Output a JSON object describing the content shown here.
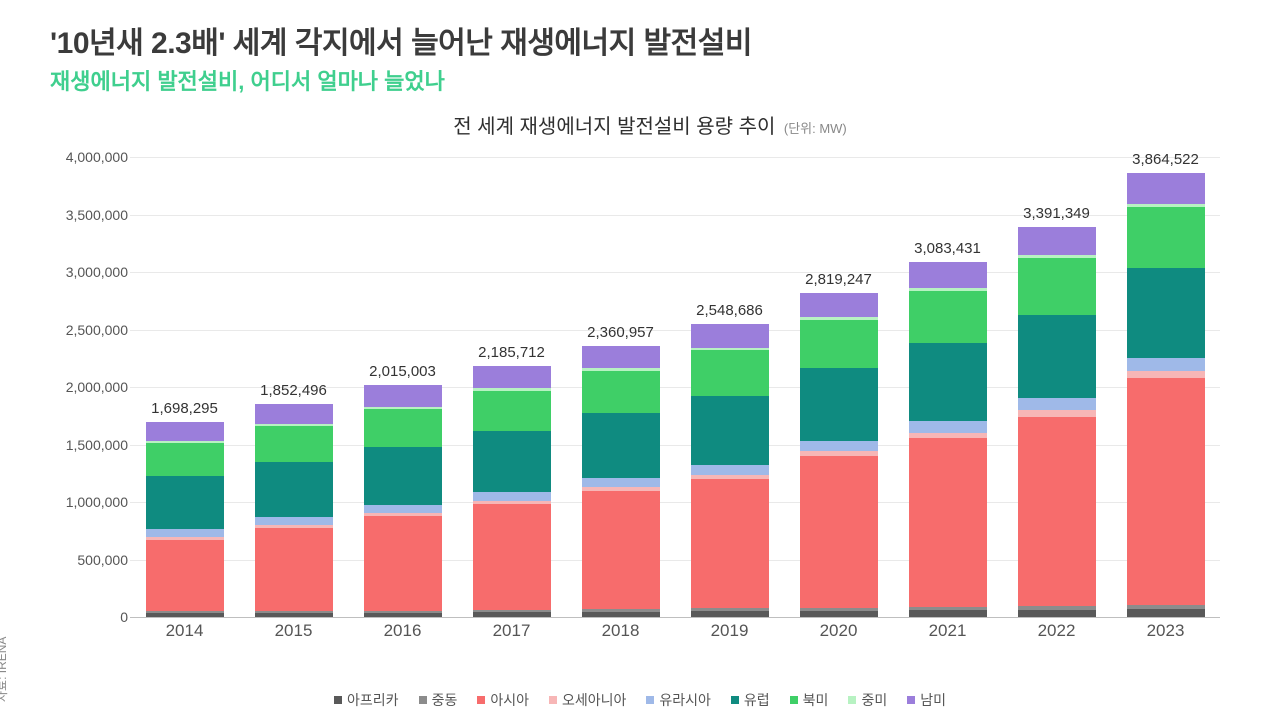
{
  "title_main": "'10년새 2.3배' 세계 각지에서 늘어난 재생에너지 발전설비",
  "title_sub": "재생에너지 발전설비, 어디서 얼마나 늘었나",
  "title_sub_color": "#3fcf8e",
  "chart_title": "전 세계 재생에너지 발전설비 용량 추이",
  "chart_unit": "(단위: MW)",
  "source": "자료: IRENA",
  "chart": {
    "type": "stacked-bar",
    "background_color": "#ffffff",
    "grid_color": "#e9e9e9",
    "axis_color": "#bfbfbf",
    "text_color": "#555555",
    "ylim": [
      0,
      4000000
    ],
    "ytick_step": 500000,
    "yticks": [
      "0",
      "500,000",
      "1,000,000",
      "1,500,000",
      "2,000,000",
      "2,500,000",
      "3,000,000",
      "3,500,000",
      "4,000,000"
    ],
    "years": [
      "2014",
      "2015",
      "2016",
      "2017",
      "2018",
      "2019",
      "2020",
      "2021",
      "2022",
      "2023"
    ],
    "series": [
      {
        "key": "africa",
        "label": "아프리카",
        "color": "#595959"
      },
      {
        "key": "mideast",
        "label": "중동",
        "color": "#8c8c8c"
      },
      {
        "key": "asia",
        "label": "아시아",
        "color": "#f76c6c"
      },
      {
        "key": "oceania",
        "label": "오세아니아",
        "color": "#f7b6b6"
      },
      {
        "key": "eurasia",
        "label": "유라시아",
        "color": "#9fb9e8"
      },
      {
        "key": "europe",
        "label": "유럽",
        "color": "#0f8b80"
      },
      {
        "key": "namerica",
        "label": "북미",
        "color": "#3fcf67"
      },
      {
        "key": "camerica",
        "label": "중미",
        "color": "#b7f2c2"
      },
      {
        "key": "samerica",
        "label": "남미",
        "color": "#9b7edb"
      }
    ],
    "totals": [
      "1,698,295",
      "1,852,496",
      "2,015,003",
      "2,185,712",
      "2,360,957",
      "2,548,686",
      "2,819,247",
      "3,083,431",
      "3,391,349",
      "3,864,522"
    ],
    "data": {
      "africa": [
        33000,
        35000,
        38000,
        42000,
        46000,
        50000,
        55000,
        58000,
        62000,
        66000
      ],
      "mideast": [
        16000,
        17000,
        18000,
        20000,
        22000,
        24000,
        26000,
        28000,
        30000,
        34000
      ],
      "asia": [
        620000,
        720000,
        820000,
        920000,
        1030000,
        1130000,
        1320000,
        1470000,
        1650000,
        1980000
      ],
      "oceania": [
        24000,
        25000,
        26000,
        28000,
        30000,
        34000,
        40000,
        46000,
        54000,
        60000
      ],
      "eurasia": [
        70000,
        72000,
        74000,
        78000,
        82000,
        86000,
        92000,
        98000,
        104000,
        112000
      ],
      "europe": [
        460000,
        480000,
        500000,
        530000,
        560000,
        600000,
        630000,
        680000,
        730000,
        780000
      ],
      "namerica": [
        290000,
        310000,
        330000,
        350000,
        370000,
        395000,
        420000,
        455000,
        490000,
        530000
      ],
      "camerica": [
        18000,
        19000,
        20000,
        21000,
        22000,
        23000,
        24000,
        25000,
        26000,
        28000
      ],
      "samerica": [
        167295,
        174496,
        189003,
        196712,
        198957,
        206686,
        212247,
        223431,
        245349,
        274522
      ]
    }
  }
}
